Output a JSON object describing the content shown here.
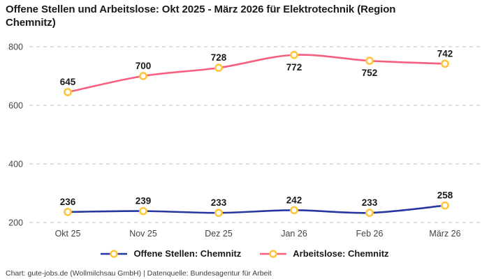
{
  "header": {
    "title": "Offene Stellen und Arbeitslose: Okt 2025 - März 2026 für Elektrotechnik (Region Chemnitz)"
  },
  "chart_data": {
    "type": "line",
    "title": "Offene Stellen und Arbeitslose: Okt 2025 - März 2026 für Elektrotechnik (Region Chemnitz)",
    "categories": [
      "Okt 25",
      "Nov 25",
      "Dez 25",
      "Jan 26",
      "Feb 26",
      "März 26"
    ],
    "series": [
      {
        "name": "Offene Stellen: Chemnitz",
        "values": [
          236,
          239,
          233,
          242,
          233,
          258
        ],
        "color": "#2638A0",
        "label_positions": [
          "above",
          "above",
          "above",
          "above",
          "above",
          "above"
        ]
      },
      {
        "name": "Arbeitslose: Chemnitz",
        "values": [
          645,
          700,
          728,
          772,
          752,
          742
        ],
        "color": "#F4607E",
        "label_positions": [
          "above",
          "above",
          "above",
          "below",
          "below",
          "above"
        ]
      }
    ],
    "marker_color": "#FFC53C",
    "marker_fill": "#ffffff",
    "yticks": [
      200,
      400,
      600,
      800
    ],
    "ylim": [
      200,
      850
    ],
    "grid": "horizontal-dashed",
    "grid_color": "#cccccc",
    "tick_label_color": "#444444",
    "data_label_color": "#1a1a1a",
    "legend_position": "bottom"
  },
  "footer": {
    "credit": "Chart: gute-jobs.de (Wollmilchsau GmbH) | Datenquelle: Bundesagentur für Arbeit"
  }
}
